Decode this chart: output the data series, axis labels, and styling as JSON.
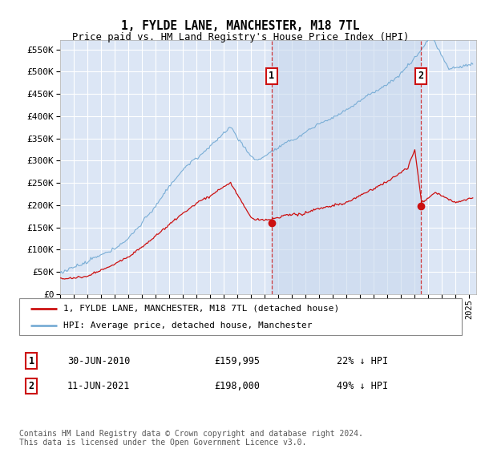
{
  "title": "1, FYLDE LANE, MANCHESTER, M18 7TL",
  "subtitle": "Price paid vs. HM Land Registry's House Price Index (HPI)",
  "ytick_values": [
    0,
    50000,
    100000,
    150000,
    200000,
    250000,
    300000,
    350000,
    400000,
    450000,
    500000,
    550000
  ],
  "ylim": [
    0,
    570000
  ],
  "xlim_start": 1995.25,
  "xlim_end": 2025.5,
  "background_color": "#dce6f5",
  "grid_color": "#ffffff",
  "hpi_color": "#7aaed6",
  "price_color": "#cc1111",
  "shade_color": "#c8d8ee",
  "marker1_x": 2010.5,
  "marker1_y": 159995,
  "marker2_x": 2021.45,
  "marker2_y": 198000,
  "marker1_date": "30-JUN-2010",
  "marker1_price": "£159,995",
  "marker1_note": "22% ↓ HPI",
  "marker2_date": "11-JUN-2021",
  "marker2_price": "£198,000",
  "marker2_note": "49% ↓ HPI",
  "legend_line1": "1, FYLDE LANE, MANCHESTER, M18 7TL (detached house)",
  "legend_line2": "HPI: Average price, detached house, Manchester",
  "footer": "Contains HM Land Registry data © Crown copyright and database right 2024.\nThis data is licensed under the Open Government Licence v3.0."
}
